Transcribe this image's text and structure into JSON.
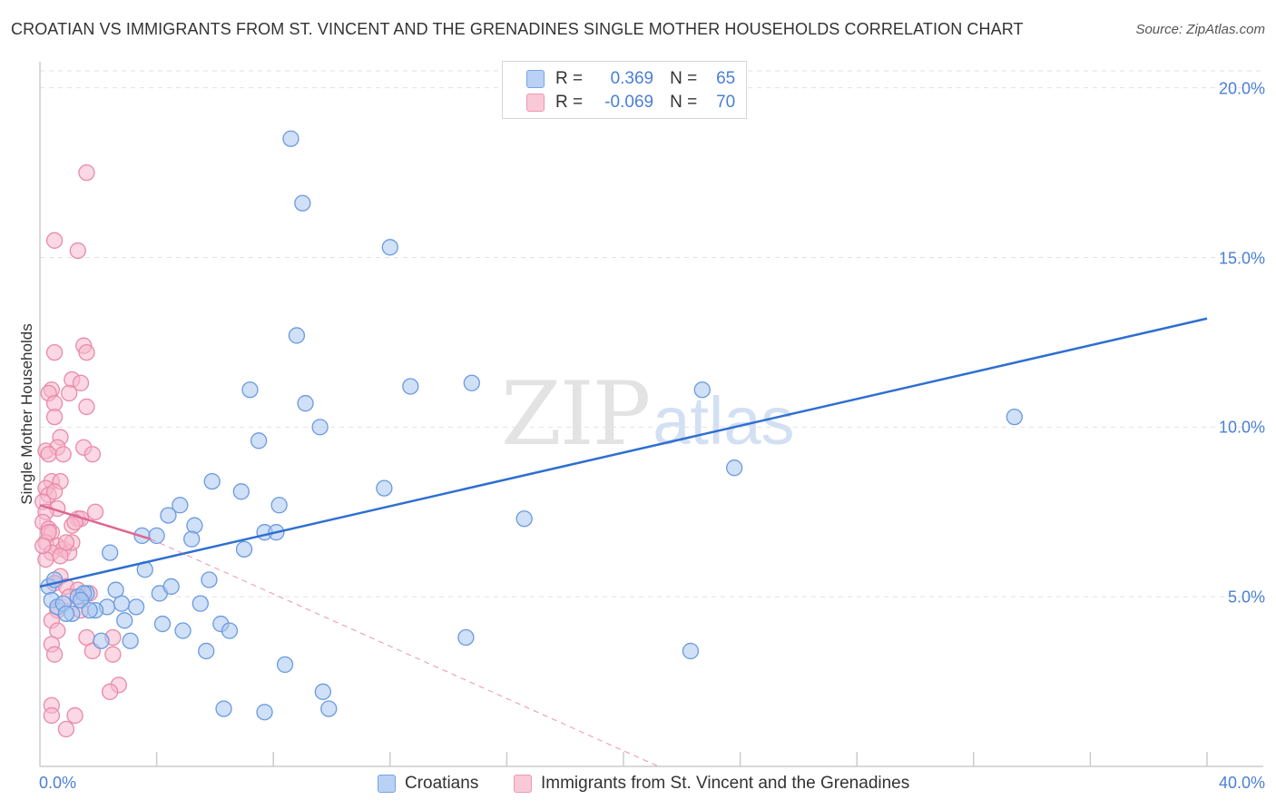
{
  "chart_data": {
    "type": "scatter",
    "title": "CROATIAN VS IMMIGRANTS FROM ST. VINCENT AND THE GRENADINES SINGLE MOTHER HOUSEHOLDS CORRELATION CHART",
    "source": "Source: ZipAtlas.com",
    "xlabel": "",
    "ylabel": "Single Mother Households",
    "xlim": [
      0,
      40
    ],
    "ylim": [
      0,
      20.5
    ],
    "x_tick_labels": [
      "0.0%",
      "40.0%"
    ],
    "y_ticks": [
      5,
      10,
      15,
      20
    ],
    "y_tick_labels": [
      "5.0%",
      "10.0%",
      "15.0%",
      "20.0%"
    ],
    "watermark": {
      "zip": "ZIP",
      "atlas": "atlas"
    },
    "colors": {
      "croatians_fill": "#a8c6f0",
      "croatians_stroke": "#6b9ae0",
      "croatians_line": "#2e6fd0",
      "svg_fill": "#f7b8cc",
      "svg_stroke": "#e88aa8",
      "svg_line": "#e06690",
      "grid": "#e2e2e2",
      "axis": "#cccccc"
    },
    "legend": {
      "r_label": "R =",
      "n_label": "N =",
      "rows": [
        {
          "r": "0.369",
          "n": "65"
        },
        {
          "r": "-0.069",
          "n": "70"
        }
      ]
    },
    "series": [
      {
        "name": "Croatians",
        "trend": {
          "x": [
            0,
            40
          ],
          "y": [
            5.3,
            13.2
          ],
          "style": "solid"
        },
        "points": [
          [
            8.6,
            18.5
          ],
          [
            9.0,
            16.6
          ],
          [
            12.0,
            15.3
          ],
          [
            8.8,
            12.7
          ],
          [
            14.8,
            11.3
          ],
          [
            12.7,
            11.2
          ],
          [
            7.2,
            11.1
          ],
          [
            22.7,
            11.1
          ],
          [
            9.1,
            10.7
          ],
          [
            9.6,
            10.0
          ],
          [
            33.4,
            10.3
          ],
          [
            7.5,
            9.6
          ],
          [
            23.8,
            8.8
          ],
          [
            5.9,
            8.4
          ],
          [
            11.8,
            8.2
          ],
          [
            6.9,
            8.1
          ],
          [
            4.8,
            7.7
          ],
          [
            8.2,
            7.7
          ],
          [
            4.4,
            7.4
          ],
          [
            5.3,
            7.1
          ],
          [
            16.6,
            7.3
          ],
          [
            3.5,
            6.8
          ],
          [
            4.0,
            6.8
          ],
          [
            5.2,
            6.7
          ],
          [
            7.7,
            6.9
          ],
          [
            8.1,
            6.9
          ],
          [
            7.0,
            6.4
          ],
          [
            2.4,
            6.3
          ],
          [
            3.6,
            5.8
          ],
          [
            4.1,
            5.1
          ],
          [
            4.5,
            5.3
          ],
          [
            5.8,
            5.5
          ],
          [
            0.3,
            5.3
          ],
          [
            1.6,
            5.1
          ],
          [
            2.6,
            5.2
          ],
          [
            1.3,
            5.0
          ],
          [
            0.4,
            4.9
          ],
          [
            0.6,
            4.7
          ],
          [
            0.8,
            4.8
          ],
          [
            1.1,
            4.5
          ],
          [
            0.9,
            4.5
          ],
          [
            2.3,
            4.7
          ],
          [
            3.3,
            4.7
          ],
          [
            5.5,
            4.8
          ],
          [
            1.9,
            4.6
          ],
          [
            2.9,
            4.3
          ],
          [
            4.2,
            4.2
          ],
          [
            6.2,
            4.2
          ],
          [
            4.9,
            4.0
          ],
          [
            6.5,
            4.0
          ],
          [
            2.1,
            3.7
          ],
          [
            3.1,
            3.7
          ],
          [
            14.6,
            3.8
          ],
          [
            5.7,
            3.4
          ],
          [
            22.3,
            3.4
          ],
          [
            8.4,
            3.0
          ],
          [
            9.7,
            2.2
          ],
          [
            6.3,
            1.7
          ],
          [
            7.7,
            1.6
          ],
          [
            9.9,
            1.7
          ],
          [
            1.5,
            5.1
          ],
          [
            1.4,
            4.9
          ],
          [
            2.8,
            4.8
          ],
          [
            1.7,
            4.6
          ],
          [
            0.5,
            5.5
          ]
        ]
      },
      {
        "name": "Immigrants from St. Vincent and the Grenadines",
        "trend": {
          "x": [
            0,
            3.8
          ],
          "y": [
            7.7,
            6.7
          ],
          "style": "solid"
        },
        "trend_extension": {
          "x": [
            3.8,
            21.2
          ],
          "y": [
            6.7,
            0
          ],
          "style": "dashed"
        },
        "points": [
          [
            1.6,
            17.5
          ],
          [
            0.5,
            15.5
          ],
          [
            1.3,
            15.2
          ],
          [
            1.5,
            12.4
          ],
          [
            0.5,
            12.2
          ],
          [
            1.6,
            12.2
          ],
          [
            1.1,
            11.4
          ],
          [
            1.4,
            11.3
          ],
          [
            0.4,
            11.1
          ],
          [
            0.3,
            11.0
          ],
          [
            1.0,
            11.0
          ],
          [
            0.5,
            10.7
          ],
          [
            1.6,
            10.6
          ],
          [
            0.5,
            10.3
          ],
          [
            0.7,
            9.7
          ],
          [
            0.2,
            9.3
          ],
          [
            0.6,
            9.4
          ],
          [
            1.5,
            9.4
          ],
          [
            0.3,
            9.2
          ],
          [
            0.8,
            9.2
          ],
          [
            1.8,
            9.2
          ],
          [
            0.4,
            8.4
          ],
          [
            0.7,
            8.4
          ],
          [
            0.2,
            8.2
          ],
          [
            0.3,
            8.0
          ],
          [
            0.1,
            7.8
          ],
          [
            0.6,
            7.6
          ],
          [
            0.2,
            7.5
          ],
          [
            1.9,
            7.5
          ],
          [
            1.3,
            7.3
          ],
          [
            1.4,
            7.3
          ],
          [
            0.1,
            7.2
          ],
          [
            0.3,
            7.0
          ],
          [
            1.1,
            7.1
          ],
          [
            0.4,
            6.9
          ],
          [
            0.2,
            6.6
          ],
          [
            0.6,
            6.5
          ],
          [
            0.8,
            6.4
          ],
          [
            0.4,
            6.3
          ],
          [
            1.0,
            6.3
          ],
          [
            0.7,
            6.2
          ],
          [
            1.1,
            6.6
          ],
          [
            0.2,
            6.1
          ],
          [
            0.7,
            5.6
          ],
          [
            0.5,
            5.4
          ],
          [
            0.9,
            5.3
          ],
          [
            1.3,
            5.2
          ],
          [
            1.7,
            5.1
          ],
          [
            1.0,
            5.0
          ],
          [
            0.6,
            4.6
          ],
          [
            1.4,
            4.6
          ],
          [
            0.4,
            4.3
          ],
          [
            0.6,
            4.0
          ],
          [
            1.6,
            3.8
          ],
          [
            2.5,
            3.8
          ],
          [
            0.4,
            3.6
          ],
          [
            0.5,
            3.3
          ],
          [
            1.8,
            3.4
          ],
          [
            2.5,
            3.3
          ],
          [
            2.7,
            2.4
          ],
          [
            2.4,
            2.2
          ],
          [
            0.4,
            1.8
          ],
          [
            1.2,
            1.5
          ],
          [
            0.4,
            1.5
          ],
          [
            0.9,
            1.1
          ],
          [
            0.3,
            6.9
          ],
          [
            0.9,
            6.6
          ],
          [
            0.5,
            8.1
          ],
          [
            0.1,
            6.5
          ],
          [
            1.2,
            7.2
          ]
        ]
      }
    ]
  },
  "bottom_legend": [
    "Croatians",
    "Immigrants from St. Vincent and the Grenadines"
  ]
}
